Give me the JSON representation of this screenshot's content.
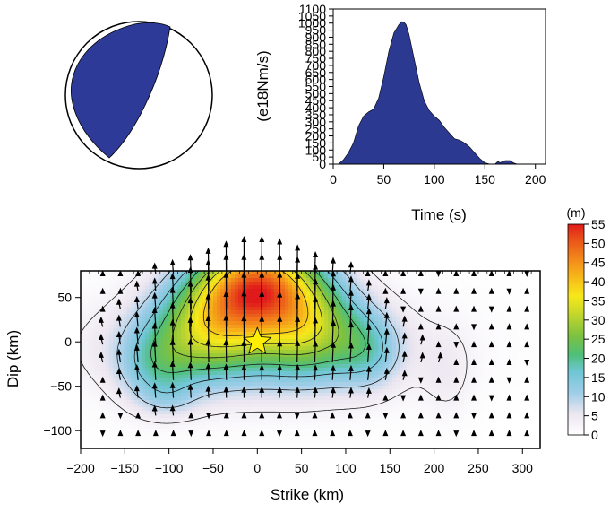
{
  "colors": {
    "beachball_fill": "#2e3a97",
    "stf_fill": "#2b3990",
    "star_fill": "#ffee00",
    "contour_line": "#1a1a1a",
    "frame": "#000000"
  },
  "chart_data": [
    {
      "type": "diagram",
      "name": "focal-mechanism",
      "description_label": ""
    },
    {
      "type": "area",
      "xlabel": "Time (s)",
      "ylabel": "(e18Nm/s)",
      "xlim": [
        0,
        210
      ],
      "ylim": [
        0,
        1100
      ],
      "xticks": [
        0,
        50,
        100,
        150,
        200
      ],
      "yticks": [
        0,
        50,
        100,
        150,
        200,
        250,
        300,
        350,
        400,
        450,
        500,
        550,
        600,
        650,
        700,
        750,
        800,
        850,
        900,
        950,
        1000,
        1050,
        1100
      ],
      "x": [
        5,
        10,
        15,
        20,
        25,
        30,
        35,
        40,
        45,
        50,
        55,
        60,
        65,
        68,
        70,
        72,
        75,
        80,
        85,
        90,
        95,
        100,
        105,
        110,
        115,
        120,
        125,
        130,
        135,
        140,
        145,
        150,
        155,
        160,
        163,
        165,
        170,
        175,
        178,
        182
      ],
      "y": [
        0,
        30,
        80,
        150,
        270,
        340,
        370,
        390,
        470,
        620,
        800,
        930,
        990,
        1010,
        1005,
        990,
        920,
        750,
        580,
        450,
        380,
        340,
        310,
        260,
        220,
        180,
        170,
        150,
        120,
        80,
        40,
        10,
        0,
        0,
        20,
        10,
        25,
        25,
        10,
        0
      ]
    },
    {
      "type": "heatmap",
      "xlabel": "Strike (km)",
      "ylabel": "Dip (km)",
      "xlim": [
        -200,
        320
      ],
      "ylim": [
        -120,
        80
      ],
      "xticks": [
        -200,
        -150,
        -100,
        -50,
        0,
        50,
        100,
        150,
        200,
        250,
        300
      ],
      "yticks": [
        -100,
        -50,
        0,
        50
      ],
      "colorbar": {
        "label": "(m)",
        "range": [
          0,
          55
        ],
        "ticks": [
          0,
          5,
          10,
          15,
          20,
          25,
          30,
          35,
          40,
          45,
          50,
          55
        ],
        "colormap": "white-blue-green-yellow-orange-red"
      },
      "hypocenter": {
        "strike_km": 0,
        "dip_km": 0
      },
      "slip_patches": [
        {
          "center": [
            0,
            65
          ],
          "sigma": [
            45,
            35
          ],
          "peak_m": 42
        },
        {
          "center": [
            -55,
            20
          ],
          "sigma": [
            45,
            40
          ],
          "peak_m": 22
        },
        {
          "center": [
            60,
            20
          ],
          "sigma": [
            40,
            40
          ],
          "peak_m": 20
        },
        {
          "center": [
            0,
            -5
          ],
          "sigma": [
            120,
            40
          ],
          "peak_m": 12
        },
        {
          "center": [
            -115,
            -30
          ],
          "sigma": [
            30,
            30
          ],
          "peak_m": 10
        },
        {
          "center": [
            125,
            -10
          ],
          "sigma": [
            25,
            30
          ],
          "peak_m": 9
        },
        {
          "center": [
            -100,
            -65
          ],
          "sigma": [
            25,
            15
          ],
          "peak_m": 4
        },
        {
          "center": [
            215,
            -40
          ],
          "sigma": [
            20,
            35
          ],
          "peak_m": 3
        }
      ],
      "contour_levels_m": [
        3,
        9,
        15,
        21,
        27,
        33,
        39
      ],
      "subfault_grid": {
        "strike_start": -175,
        "strike_step": 20,
        "strike_count": 25,
        "dip_start": -103,
        "dip_step": 20,
        "dip_count": 10
      }
    }
  ]
}
